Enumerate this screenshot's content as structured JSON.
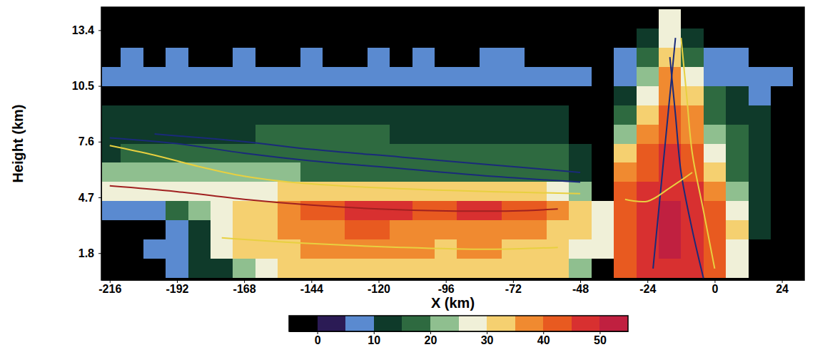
{
  "chart_data": {
    "type": "heatmap",
    "x_label": "X (km)",
    "y_label": "Height (km)",
    "xlim": [
      -219,
      32
    ],
    "ylim": [
      0.4,
      14.6
    ],
    "xticks": [
      -216,
      -192,
      -168,
      -144,
      -120,
      -96,
      -72,
      -48,
      -24,
      0,
      24
    ],
    "yticks": [
      1.8,
      4.7,
      7.6,
      10.5,
      13.4
    ],
    "cells": {
      "x": [
        -216,
        -208,
        -200,
        -192,
        -184,
        -176,
        -168,
        -160,
        -152,
        -144,
        -136,
        -128,
        -120,
        -112,
        -104,
        -96,
        -88,
        -80,
        -72,
        -64,
        -56,
        -48,
        -40,
        -32,
        -24,
        -16,
        -8,
        0,
        8,
        16,
        24
      ],
      "y": [
        1,
        2,
        3,
        4,
        5,
        6,
        7,
        8,
        9,
        10,
        11,
        12,
        13,
        14
      ],
      "values": [
        [
          null,
          null,
          null,
          8,
          10,
          14,
          22,
          28,
          30,
          32,
          33,
          34,
          34,
          33,
          33,
          32,
          32,
          33,
          32,
          31,
          30,
          20,
          null,
          42,
          46,
          48,
          46,
          42,
          25,
          null,
          null
        ],
        [
          null,
          null,
          7,
          8,
          12,
          26,
          30,
          33,
          34,
          35,
          35,
          36,
          36,
          35,
          35,
          34,
          35,
          35,
          34,
          33,
          31,
          28,
          26,
          43,
          47,
          50,
          48,
          42,
          26,
          null,
          null
        ],
        [
          null,
          null,
          null,
          6,
          10,
          25,
          30,
          33,
          36,
          38,
          39,
          40,
          40,
          39,
          39,
          38,
          39,
          39,
          38,
          37,
          34,
          30,
          28,
          44,
          48,
          51,
          48,
          42,
          30,
          10,
          null
        ],
        [
          5,
          5,
          6,
          15,
          22,
          27,
          30,
          34,
          38,
          42,
          44,
          45,
          46,
          45,
          44,
          44,
          45,
          45,
          44,
          42,
          36,
          30,
          27,
          44,
          49,
          52,
          48,
          44,
          28,
          12,
          null
        ],
        [
          25,
          25,
          26,
          27,
          28,
          27,
          27,
          28,
          30,
          32,
          33,
          34,
          34,
          34,
          33,
          33,
          33,
          33,
          32,
          30,
          25,
          22,
          null,
          40,
          45,
          48,
          45,
          35,
          20,
          12,
          null
        ],
        [
          21,
          21,
          20,
          20,
          20,
          20,
          20,
          20,
          20,
          19,
          19,
          19,
          19,
          19,
          19,
          19,
          19,
          19,
          18,
          18,
          18,
          12,
          null,
          35,
          42,
          47,
          42,
          30,
          18,
          12,
          null
        ],
        [
          14,
          17,
          18,
          18,
          18,
          18,
          18,
          18,
          18,
          18,
          16,
          16,
          16,
          16,
          16,
          16,
          16,
          16,
          16,
          16,
          15,
          10,
          null,
          30,
          40,
          45,
          40,
          25,
          16,
          12,
          null
        ],
        [
          14,
          14,
          14,
          14,
          14,
          14,
          14,
          15,
          15,
          15,
          15,
          15,
          15,
          14,
          14,
          14,
          14,
          14,
          14,
          13,
          10,
          null,
          null,
          20,
          35,
          42,
          38,
          20,
          16,
          12,
          null
        ],
        [
          12,
          12,
          12,
          12,
          12,
          12,
          12,
          12,
          12,
          12,
          12,
          11,
          12,
          12,
          11,
          12,
          12,
          11,
          12,
          12,
          11,
          null,
          null,
          15,
          32,
          40,
          35,
          18,
          14,
          10,
          null
        ],
        [
          null,
          null,
          null,
          null,
          null,
          null,
          null,
          null,
          null,
          null,
          null,
          null,
          null,
          null,
          null,
          null,
          null,
          null,
          null,
          null,
          null,
          null,
          null,
          12,
          28,
          38,
          30,
          15,
          12,
          8,
          null
        ],
        [
          7,
          6,
          8,
          7,
          6,
          7,
          8,
          7,
          6,
          7,
          7,
          8,
          7,
          6,
          7,
          8,
          7,
          7,
          6,
          7,
          8,
          7,
          null,
          8,
          22,
          35,
          28,
          8,
          6,
          7,
          6
        ],
        [
          null,
          7,
          null,
          6,
          null,
          null,
          7,
          null,
          null,
          6,
          null,
          null,
          7,
          null,
          6,
          null,
          null,
          7,
          6,
          null,
          null,
          null,
          null,
          6,
          15,
          30,
          18,
          6,
          7,
          null,
          null
        ],
        [
          null,
          null,
          null,
          null,
          null,
          null,
          null,
          null,
          null,
          null,
          null,
          null,
          null,
          null,
          null,
          null,
          null,
          null,
          null,
          null,
          null,
          null,
          null,
          null,
          10,
          28,
          10,
          null,
          null,
          null,
          null
        ],
        [
          null,
          null,
          null,
          null,
          null,
          null,
          null,
          null,
          null,
          null,
          null,
          null,
          null,
          null,
          null,
          null,
          null,
          null,
          null,
          null,
          null,
          null,
          null,
          null,
          null,
          26,
          null,
          null,
          null,
          null,
          null
        ]
      ]
    },
    "contours": [
      {
        "color": "#e8d040",
        "x": [
          -216,
          -200,
          -184,
          -168,
          -152,
          -120,
          -80,
          -48
        ],
        "y": [
          7.4,
          6.9,
          6.3,
          5.8,
          5.5,
          5.2,
          5.0,
          4.9
        ]
      },
      {
        "color": "#a02020",
        "x": [
          -216,
          -192,
          -168,
          -144,
          -120,
          -96,
          -72,
          -56
        ],
        "y": [
          5.3,
          5.0,
          4.6,
          4.3,
          4.1,
          4.0,
          4.0,
          4.1
        ]
      },
      {
        "color": "#e8d040",
        "x": [
          -176,
          -144,
          -112,
          -80,
          -56
        ],
        "y": [
          2.6,
          2.3,
          2.1,
          2.0,
          2.1
        ]
      },
      {
        "color": "#1a2a7a",
        "x": [
          -216,
          -192,
          -168,
          -144,
          -112,
          -80,
          -48
        ],
        "y": [
          7.8,
          7.5,
          7.0,
          6.6,
          6.2,
          5.8,
          5.5
        ]
      },
      {
        "color": "#1a2a7a",
        "x": [
          -200,
          -168,
          -144,
          -112,
          -80,
          -48
        ],
        "y": [
          8.0,
          7.6,
          7.2,
          6.8,
          6.4,
          6.0
        ]
      },
      {
        "color": "#1a2a7a",
        "x": [
          -4,
          -8,
          -12,
          -14,
          -16
        ],
        "y": [
          0.5,
          3,
          6,
          9,
          12
        ]
      },
      {
        "color": "#1a2a7a",
        "x": [
          -22,
          -20,
          -18,
          -16,
          -14
        ],
        "y": [
          1,
          4,
          7,
          10,
          13
        ]
      },
      {
        "color": "#e8d040",
        "x": [
          0,
          -4,
          -8,
          -10,
          -12
        ],
        "y": [
          1,
          4,
          7,
          10,
          13
        ]
      },
      {
        "color": "#e8d040",
        "x": [
          -32,
          -24,
          -16,
          -8
        ],
        "y": [
          4.6,
          4.5,
          5.2,
          6.0
        ]
      }
    ],
    "colorbar": {
      "range": [
        -5,
        55
      ],
      "ticks": [
        0,
        10,
        20,
        30,
        40,
        50
      ],
      "colors": [
        "#000000",
        "#2b1b55",
        "#5a8ad0",
        "#0f3a2a",
        "#2e6a40",
        "#8fbf8f",
        "#f0f0d8",
        "#f5d070",
        "#f08a30",
        "#e85a20",
        "#d83030",
        "#c02040"
      ]
    }
  }
}
